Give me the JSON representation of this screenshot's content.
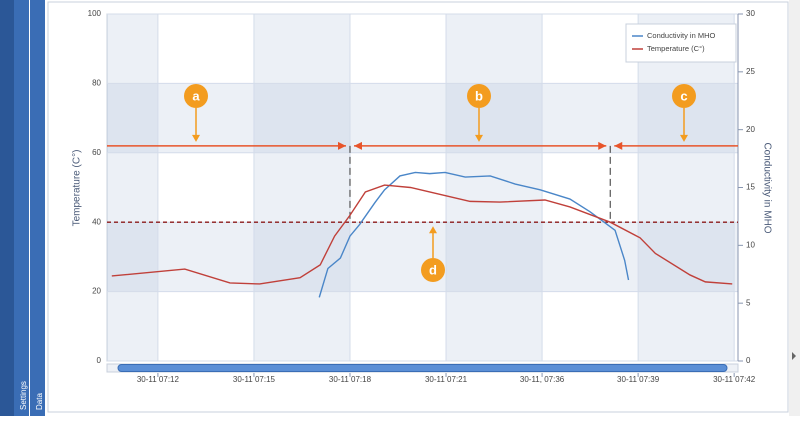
{
  "sidebar": {
    "tabs": [
      "Settings",
      "Data"
    ]
  },
  "chart_data": {
    "type": "line",
    "y_label": "Temperature (C°)",
    "y2_label": "Conductivity in MHO",
    "xlim": [
      -0.53,
      6.04
    ],
    "xticks": [
      {
        "value": 0,
        "label": "30-11 07:12"
      },
      {
        "value": 1,
        "label": "30-11 07:15"
      },
      {
        "value": 2,
        "label": "30-11 07:18"
      },
      {
        "value": 3,
        "label": "30-11 07:21"
      },
      {
        "value": 4,
        "label": "30-11, 07:36"
      },
      {
        "value": 5,
        "label": "30-11 07:39"
      },
      {
        "value": 6,
        "label": "30-11 07:42"
      }
    ],
    "ylim": [
      0,
      100
    ],
    "yticks": [
      0,
      20,
      40,
      60,
      80,
      100
    ],
    "y2lim": [
      0,
      30
    ],
    "y2ticks": [
      0,
      5,
      10,
      15,
      20,
      25,
      30
    ],
    "grid": true,
    "legend": "top-right",
    "series": [
      {
        "name": "Conductivity in MHO",
        "color": "#4a86c8",
        "axis": "y2",
        "x": [
          1.68,
          1.77,
          1.9,
          2.0,
          2.1,
          2.26,
          2.36,
          2.52,
          2.68,
          2.83,
          2.99,
          3.2,
          3.46,
          3.72,
          3.98,
          4.29,
          4.5,
          4.76,
          4.86,
          4.9
        ],
        "values": [
          5.5,
          8.0,
          8.9,
          10.8,
          11.8,
          13.7,
          14.8,
          16.0,
          16.3,
          16.2,
          16.3,
          15.9,
          16.0,
          15.3,
          14.8,
          14.0,
          12.9,
          11.3,
          8.7,
          7.0
        ]
      },
      {
        "name": "Temperature (C°)",
        "color": "#c0403a",
        "x": [
          -0.48,
          0.28,
          0.75,
          1.06,
          1.48,
          1.69,
          1.84,
          2.0,
          2.16,
          2.36,
          2.63,
          2.94,
          3.25,
          3.56,
          4.03,
          4.29,
          4.71,
          5.02,
          5.18,
          5.54,
          5.7,
          5.98
        ],
        "values": [
          24.5,
          26.5,
          22.5,
          22.2,
          24,
          27.7,
          36,
          42,
          48.7,
          50.7,
          50,
          48,
          46,
          45.8,
          46.4,
          44.4,
          40,
          35.5,
          31,
          24.8,
          22.8,
          22.2
        ]
      }
    ],
    "annotations": {
      "labels": [
        "a",
        "b",
        "c",
        "d"
      ],
      "threshold": 40,
      "level": 62,
      "boundaries": [
        2.0,
        4.71
      ]
    }
  }
}
